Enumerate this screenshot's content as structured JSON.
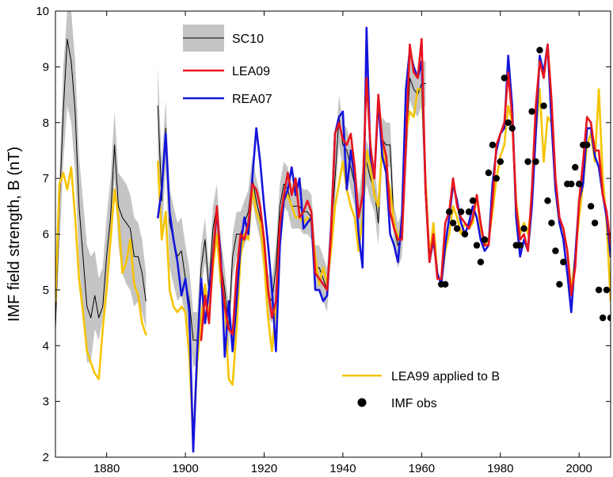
{
  "chart_data": {
    "type": "line",
    "title": "",
    "xlabel": "",
    "ylabel": "IMF field strength, B (nT)",
    "xlim": [
      1867,
      2008
    ],
    "ylim": [
      2,
      10
    ],
    "xticks": [
      1880,
      1900,
      1920,
      1940,
      1960,
      1980,
      2000
    ],
    "yticks": [
      2,
      3,
      4,
      5,
      6,
      7,
      8,
      9,
      10
    ],
    "grid": false,
    "legend_top": [
      "SC10",
      "LEA09",
      "REA07"
    ],
    "legend_bottom": [
      "LEA99 applied to B",
      "IMF obs"
    ],
    "colors": {
      "sc10_line": "#000000",
      "sc10_band": "#c4c4c4",
      "lea09": "#e8141e",
      "rea07": "#1414dc",
      "lea99": "#f5c400",
      "imf_obs": "#000000"
    },
    "series": [
      {
        "name": "SC10",
        "kind": "line-band",
        "x": [
          1867,
          1868,
          1869,
          1870,
          1871,
          1872,
          1873,
          1874,
          1875,
          1876,
          1877,
          1878,
          1879,
          1880,
          1881,
          1882,
          1883,
          1884,
          1885,
          1886,
          1887,
          1888,
          1889,
          1890,
          1893,
          1894,
          1895,
          1896,
          1897,
          1898,
          1899,
          1900,
          1901,
          1902,
          1903,
          1904,
          1905,
          1906,
          1907,
          1908,
          1909,
          1910,
          1911,
          1912,
          1913,
          1914,
          1915,
          1916,
          1917,
          1918,
          1919,
          1920,
          1921,
          1922,
          1923,
          1924,
          1925,
          1926,
          1927,
          1928,
          1929,
          1930,
          1931,
          1932,
          1933,
          1934,
          1935,
          1936,
          1937,
          1938,
          1939,
          1940,
          1941,
          1942,
          1943,
          1944,
          1945,
          1946,
          1947,
          1948,
          1949,
          1950,
          1951,
          1952,
          1953,
          1954,
          1955,
          1956,
          1957,
          1958,
          1959,
          1960,
          1961
        ],
        "y": [
          4.3,
          6.5,
          8.2,
          9.5,
          9.1,
          8.2,
          6.5,
          5.6,
          4.7,
          4.5,
          4.9,
          4.5,
          4.7,
          5.6,
          6.3,
          7.6,
          6.5,
          6.3,
          6.2,
          6.1,
          5.6,
          5.6,
          5.3,
          4.8,
          8.3,
          6.6,
          7.9,
          6.2,
          5.9,
          5.6,
          5.7,
          5.2,
          4.8,
          4.1,
          4.1,
          5.4,
          5.9,
          5.0,
          6.1,
          6.5,
          5.5,
          5.0,
          4.3,
          5.6,
          6.0,
          6.0,
          6.2,
          6.4,
          7.0,
          6.6,
          6.3,
          5.6,
          4.9,
          4.8,
          5.4,
          6.5,
          6.9,
          6.8,
          6.5,
          6.5,
          6.5,
          6.4,
          6.4,
          6.3,
          5.4,
          5.4,
          5.2,
          5.0,
          6.0,
          7.0,
          8.1,
          7.6,
          7.5,
          7.2,
          6.9,
          6.3,
          6.8,
          7.3,
          7.0,
          6.8,
          6.2,
          7.7,
          7.6,
          7.6,
          6.1,
          5.8,
          6.0,
          7.4,
          8.8,
          8.6,
          8.5,
          8.7,
          8.7
        ],
        "y_low": [
          4.3,
          5.7,
          7.3,
          8.3,
          8.0,
          7.1,
          5.5,
          4.6,
          3.7,
          3.7,
          4.3,
          4.1,
          4.5,
          5.1,
          5.8,
          7.0,
          5.8,
          5.3,
          5.1,
          5.0,
          4.7,
          4.8,
          4.6,
          4.3,
          7.5,
          5.9,
          7.2,
          5.4,
          5.1,
          4.8,
          4.9,
          4.5,
          4.2,
          3.6,
          3.7,
          5.0,
          5.5,
          4.7,
          5.6,
          6.0,
          5.0,
          4.5,
          3.9,
          5.2,
          5.6,
          5.6,
          5.8,
          6.0,
          6.6,
          6.2,
          5.9,
          5.3,
          4.5,
          4.4,
          5.0,
          6.1,
          6.5,
          6.4,
          6.1,
          6.1,
          6.1,
          6.0,
          6.0,
          5.9,
          5.0,
          5.0,
          4.8,
          4.6,
          5.6,
          6.6,
          7.6,
          7.2,
          7.1,
          6.8,
          6.5,
          5.9,
          6.4,
          6.9,
          6.6,
          6.4,
          5.8,
          7.3,
          7.2,
          7.2,
          5.7,
          5.4,
          5.6,
          7.0,
          8.4,
          8.2,
          8.1,
          8.3,
          8.3
        ],
        "y_high": [
          4.3,
          7.0,
          9.0,
          10.0,
          10.0,
          9.1,
          7.4,
          6.6,
          5.8,
          5.6,
          5.7,
          5.2,
          5.4,
          6.3,
          7.0,
          8.2,
          7.1,
          7.0,
          6.9,
          6.7,
          6.3,
          6.2,
          5.9,
          5.3,
          9.0,
          7.3,
          8.4,
          6.8,
          6.5,
          6.2,
          6.3,
          5.8,
          5.4,
          4.6,
          4.6,
          5.8,
          6.3,
          5.4,
          6.5,
          6.9,
          5.9,
          5.4,
          4.7,
          6.0,
          6.4,
          6.4,
          6.6,
          6.8,
          7.4,
          7.0,
          6.7,
          6.0,
          5.3,
          5.2,
          5.8,
          6.9,
          7.3,
          7.2,
          6.9,
          6.9,
          6.9,
          6.8,
          6.8,
          6.7,
          5.8,
          5.8,
          5.6,
          5.4,
          6.4,
          7.4,
          8.5,
          8.0,
          7.9,
          7.6,
          7.3,
          6.7,
          7.2,
          7.7,
          7.4,
          7.2,
          6.6,
          8.1,
          8.0,
          8.0,
          6.5,
          6.2,
          6.4,
          7.8,
          9.2,
          9.0,
          8.9,
          9.1,
          9.1
        ]
      },
      {
        "name": "LEA09",
        "kind": "line",
        "x": [
          1904,
          1905,
          1906,
          1907,
          1908,
          1909,
          1910,
          1911,
          1912,
          1913,
          1914,
          1915,
          1916,
          1917,
          1918,
          1919,
          1920,
          1921,
          1922,
          1923,
          1924,
          1925,
          1926,
          1927,
          1928,
          1929,
          1930,
          1931,
          1932,
          1933,
          1934,
          1935,
          1936,
          1937,
          1938,
          1939,
          1940,
          1941,
          1942,
          1943,
          1944,
          1945,
          1946,
          1947,
          1948,
          1949,
          1950,
          1951,
          1952,
          1953,
          1954,
          1955,
          1956,
          1957,
          1958,
          1959,
          1960,
          1961,
          1962,
          1963,
          1964,
          1965,
          1966,
          1967,
          1968,
          1969,
          1970,
          1971,
          1972,
          1973,
          1974,
          1975,
          1976,
          1977,
          1978,
          1979,
          1980,
          1981,
          1982,
          1983,
          1984,
          1985,
          1986,
          1987,
          1988,
          1989,
          1990,
          1991,
          1992,
          1993,
          1994,
          1995,
          1996,
          1997,
          1998,
          1999,
          2000,
          2001,
          2002,
          2003,
          2004,
          2005,
          2006,
          2007,
          2008
        ],
        "y": [
          4.1,
          4.9,
          4.4,
          5.6,
          6.5,
          5.4,
          4.7,
          4.3,
          4.2,
          5.3,
          6.0,
          5.9,
          6.2,
          6.9,
          6.8,
          6.5,
          5.9,
          5.0,
          4.5,
          4.8,
          6.2,
          6.7,
          7.1,
          6.7,
          7.0,
          6.3,
          6.4,
          6.6,
          6.4,
          5.3,
          5.2,
          5.1,
          5.0,
          6.0,
          7.8,
          8.0,
          7.7,
          7.6,
          7.8,
          7.2,
          6.3,
          6.7,
          8.8,
          7.6,
          7.0,
          8.5,
          7.7,
          7.4,
          6.4,
          6.1,
          5.9,
          5.9,
          7.6,
          9.4,
          8.9,
          8.8,
          9.5,
          6.8,
          5.5,
          6.0,
          5.2,
          5.2,
          6.2,
          6.4,
          7.0,
          6.5,
          6.3,
          6.2,
          6.1,
          6.3,
          6.7,
          6.2,
          5.8,
          5.8,
          6.6,
          7.6,
          7.8,
          8.0,
          8.9,
          8.1,
          6.5,
          5.9,
          6.0,
          5.7,
          6.8,
          8.3,
          9.1,
          8.8,
          9.4,
          8.4,
          7.0,
          6.3,
          6.1,
          5.7,
          4.9,
          5.4,
          6.6,
          7.3,
          8.1,
          8.0,
          7.5,
          7.5,
          6.7,
          6.4,
          5.8
        ]
      },
      {
        "name": "REA07",
        "kind": "line",
        "x": [
          1893,
          1894,
          1895,
          1896,
          1897,
          1898,
          1899,
          1900,
          1901,
          1902,
          1903,
          1904,
          1905,
          1906,
          1907,
          1908,
          1909,
          1910,
          1911,
          1912,
          1913,
          1914,
          1915,
          1916,
          1917,
          1918,
          1919,
          1920,
          1921,
          1922,
          1923,
          1924,
          1925,
          1926,
          1927,
          1928,
          1929,
          1930,
          1931,
          1932,
          1933,
          1934,
          1935,
          1936,
          1937,
          1938,
          1939,
          1940,
          1941,
          1942,
          1943,
          1944,
          1945,
          1946,
          1947,
          1948,
          1949,
          1950,
          1951,
          1952,
          1953,
          1954,
          1955,
          1956,
          1957,
          1958,
          1959,
          1960,
          1961,
          1962,
          1963,
          1964,
          1965,
          1966,
          1967,
          1968,
          1969,
          1970,
          1971,
          1972,
          1973,
          1974,
          1975,
          1976,
          1977,
          1978,
          1979,
          1980,
          1981,
          1982,
          1983,
          1984,
          1985,
          1986,
          1987,
          1988,
          1989,
          1990,
          1991,
          1992,
          1993,
          1994,
          1995,
          1996,
          1997,
          1998,
          1999,
          2000,
          2001,
          2002,
          2003,
          2004,
          2005,
          2006,
          2007,
          2008
        ],
        "y": [
          6.3,
          6.8,
          7.8,
          6.4,
          5.9,
          5.5,
          4.9,
          5.2,
          4.6,
          2.1,
          3.9,
          5.2,
          4.4,
          5.0,
          5.6,
          6.4,
          5.6,
          3.8,
          4.8,
          3.9,
          4.8,
          5.8,
          6.3,
          6.0,
          7.0,
          7.9,
          7.3,
          6.5,
          5.8,
          5.0,
          3.9,
          5.8,
          6.6,
          6.8,
          7.2,
          6.7,
          7.0,
          6.1,
          6.2,
          6.3,
          5.0,
          5.0,
          4.8,
          4.9,
          6.1,
          7.8,
          8.1,
          8.2,
          6.8,
          7.5,
          7.0,
          6.0,
          5.4,
          9.7,
          7.4,
          7.0,
          8.4,
          7.4,
          7.1,
          6.0,
          5.8,
          5.5,
          6.3,
          8.6,
          9.3,
          9.0,
          8.8,
          9.1,
          6.8,
          5.5,
          5.9,
          5.3,
          5.1,
          5.8,
          6.3,
          6.9,
          6.6,
          6.2,
          6.0,
          6.2,
          6.5,
          6.3,
          5.9,
          5.7,
          5.8,
          6.9,
          7.5,
          7.8,
          7.9,
          9.2,
          8.3,
          6.3,
          5.6,
          5.9,
          5.7,
          6.5,
          7.8,
          9.2,
          8.9,
          9.4,
          8.0,
          6.8,
          6.2,
          5.9,
          5.3,
          4.6,
          5.6,
          6.6,
          6.9,
          7.9,
          7.9,
          7.4,
          7.2,
          6.7,
          6.3,
          5.6
        ]
      },
      {
        "name": "LEA99 applied to B",
        "kind": "line",
        "x": [
          1867,
          1868,
          1869,
          1870,
          1871,
          1872,
          1873,
          1874,
          1875,
          1876,
          1877,
          1878,
          1879,
          1880,
          1881,
          1882,
          1883,
          1884,
          1885,
          1886,
          1887,
          1888,
          1889,
          1890,
          1893,
          1894,
          1895,
          1896,
          1897,
          1898,
          1899,
          1900,
          1901,
          1902,
          1903,
          1904,
          1905,
          1906,
          1907,
          1908,
          1909,
          1910,
          1911,
          1912,
          1913,
          1914,
          1915,
          1916,
          1917,
          1918,
          1919,
          1920,
          1921,
          1922,
          1923,
          1924,
          1925,
          1926,
          1927,
          1928,
          1929,
          1930,
          1931,
          1932,
          1933,
          1934,
          1935,
          1936,
          1937,
          1938,
          1939,
          1940,
          1941,
          1942,
          1943,
          1944,
          1945,
          1946,
          1947,
          1948,
          1949,
          1950,
          1951,
          1952,
          1953,
          1954,
          1955,
          1956,
          1957,
          1958,
          1959,
          1960,
          1961,
          1962,
          1963,
          1964,
          1965,
          1966,
          1967,
          1968,
          1969,
          1970,
          1971,
          1972,
          1973,
          1974,
          1975,
          1976,
          1977,
          1978,
          1979,
          1980,
          1981,
          1982,
          1983,
          1984,
          1985,
          1986,
          1987,
          1988,
          1989,
          1990,
          1991,
          1992,
          1993,
          1994,
          1995,
          1996,
          1997,
          1998,
          1999,
          2000,
          2001,
          2002,
          2003,
          2004,
          2005,
          2006,
          2007,
          2008
        ],
        "y": [
          4.8,
          6.9,
          7.1,
          6.8,
          7.2,
          6.3,
          5.2,
          4.6,
          3.9,
          3.7,
          3.5,
          3.4,
          4.3,
          5.0,
          5.9,
          6.8,
          6.3,
          5.3,
          5.5,
          5.9,
          5.1,
          4.9,
          4.4,
          4.2,
          7.3,
          5.9,
          6.4,
          5.0,
          4.7,
          4.6,
          4.7,
          4.6,
          3.8,
          2.3,
          3.7,
          4.5,
          5.1,
          4.5,
          5.4,
          6.0,
          5.1,
          4.8,
          3.4,
          3.3,
          4.3,
          5.6,
          6.0,
          5.9,
          6.8,
          6.4,
          6.2,
          5.5,
          4.5,
          3.9,
          4.7,
          5.9,
          6.6,
          6.7,
          6.5,
          6.3,
          6.3,
          6.2,
          6.3,
          6.2,
          5.6,
          5.1,
          5.4,
          5.1,
          5.7,
          6.5,
          6.9,
          7.3,
          6.8,
          6.5,
          6.3,
          5.7,
          6.3,
          7.5,
          7.2,
          6.7,
          6.5,
          7.6,
          7.1,
          6.8,
          6.2,
          5.9,
          6.2,
          7.8,
          8.2,
          8.1,
          8.6,
          8.6,
          7.0,
          5.6,
          6.2,
          5.3,
          5.1,
          5.7,
          6.0,
          6.5,
          6.3,
          6.0,
          6.2,
          6.1,
          6.2,
          6.7,
          6.1,
          5.8,
          5.9,
          6.4,
          7.0,
          7.4,
          7.6,
          8.3,
          8.0,
          6.6,
          6.0,
          6.2,
          6.0,
          6.6,
          7.8,
          8.6,
          7.3,
          8.1,
          8.0,
          6.8,
          6.2,
          6.1,
          5.7,
          5.0,
          5.6,
          6.3,
          6.9,
          7.6,
          7.8,
          7.3,
          8.6,
          7.0,
          6.2,
          4.8
        ]
      },
      {
        "name": "IMF obs",
        "kind": "scatter",
        "x": [
          1965,
          1966,
          1967,
          1968,
          1969,
          1970,
          1971,
          1972,
          1973,
          1974,
          1975,
          1976,
          1977,
          1978,
          1979,
          1980,
          1981,
          1982,
          1983,
          1984,
          1985,
          1986,
          1987,
          1988,
          1989,
          1990,
          1991,
          1992,
          1993,
          1994,
          1995,
          1996,
          1997,
          1998,
          1999,
          2000,
          2001,
          2002,
          2003,
          2004,
          2005,
          2006,
          2007,
          2008
        ],
        "y": [
          5.1,
          5.1,
          6.4,
          6.2,
          6.1,
          6.4,
          6.0,
          6.4,
          6.6,
          5.8,
          5.5,
          5.9,
          7.1,
          7.6,
          7.0,
          7.3,
          8.8,
          8.0,
          7.9,
          5.8,
          5.8,
          6.1,
          7.3,
          8.2,
          7.3,
          9.3,
          8.3,
          6.6,
          6.2,
          5.7,
          5.1,
          5.5,
          6.9,
          6.9,
          7.2,
          6.9,
          7.6,
          7.6,
          6.5,
          6.2,
          5.0,
          4.5,
          5.0,
          4.5
        ]
      }
    ]
  }
}
